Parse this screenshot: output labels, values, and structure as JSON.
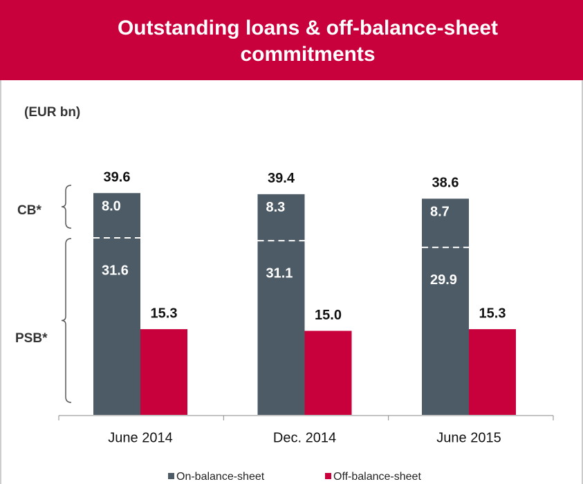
{
  "chart_data": {
    "type": "bar",
    "title": "Outstanding loans & off-balance-sheet commitments",
    "subtitle": "(EUR bn)",
    "categories": [
      "June 2014",
      "Dec. 2014",
      "June 2015"
    ],
    "series": [
      {
        "name": "On-balance-sheet",
        "color": "#4d5b67",
        "values": [
          39.6,
          39.4,
          38.6
        ],
        "segments": [
          {
            "name": "CB*",
            "values": [
              8.0,
              8.3,
              8.7
            ],
            "value_labels": [
              "8.0",
              "8.3",
              "8.7"
            ]
          },
          {
            "name": "PSB*",
            "values": [
              31.6,
              31.1,
              29.9
            ]
          }
        ]
      },
      {
        "name": "Off-balance-sheet",
        "color": "#c8003c",
        "values": [
          15.3,
          15.0,
          15.3
        ],
        "value_labels": [
          "15.3",
          "15.0",
          "15.3"
        ]
      }
    ]
  }
}
